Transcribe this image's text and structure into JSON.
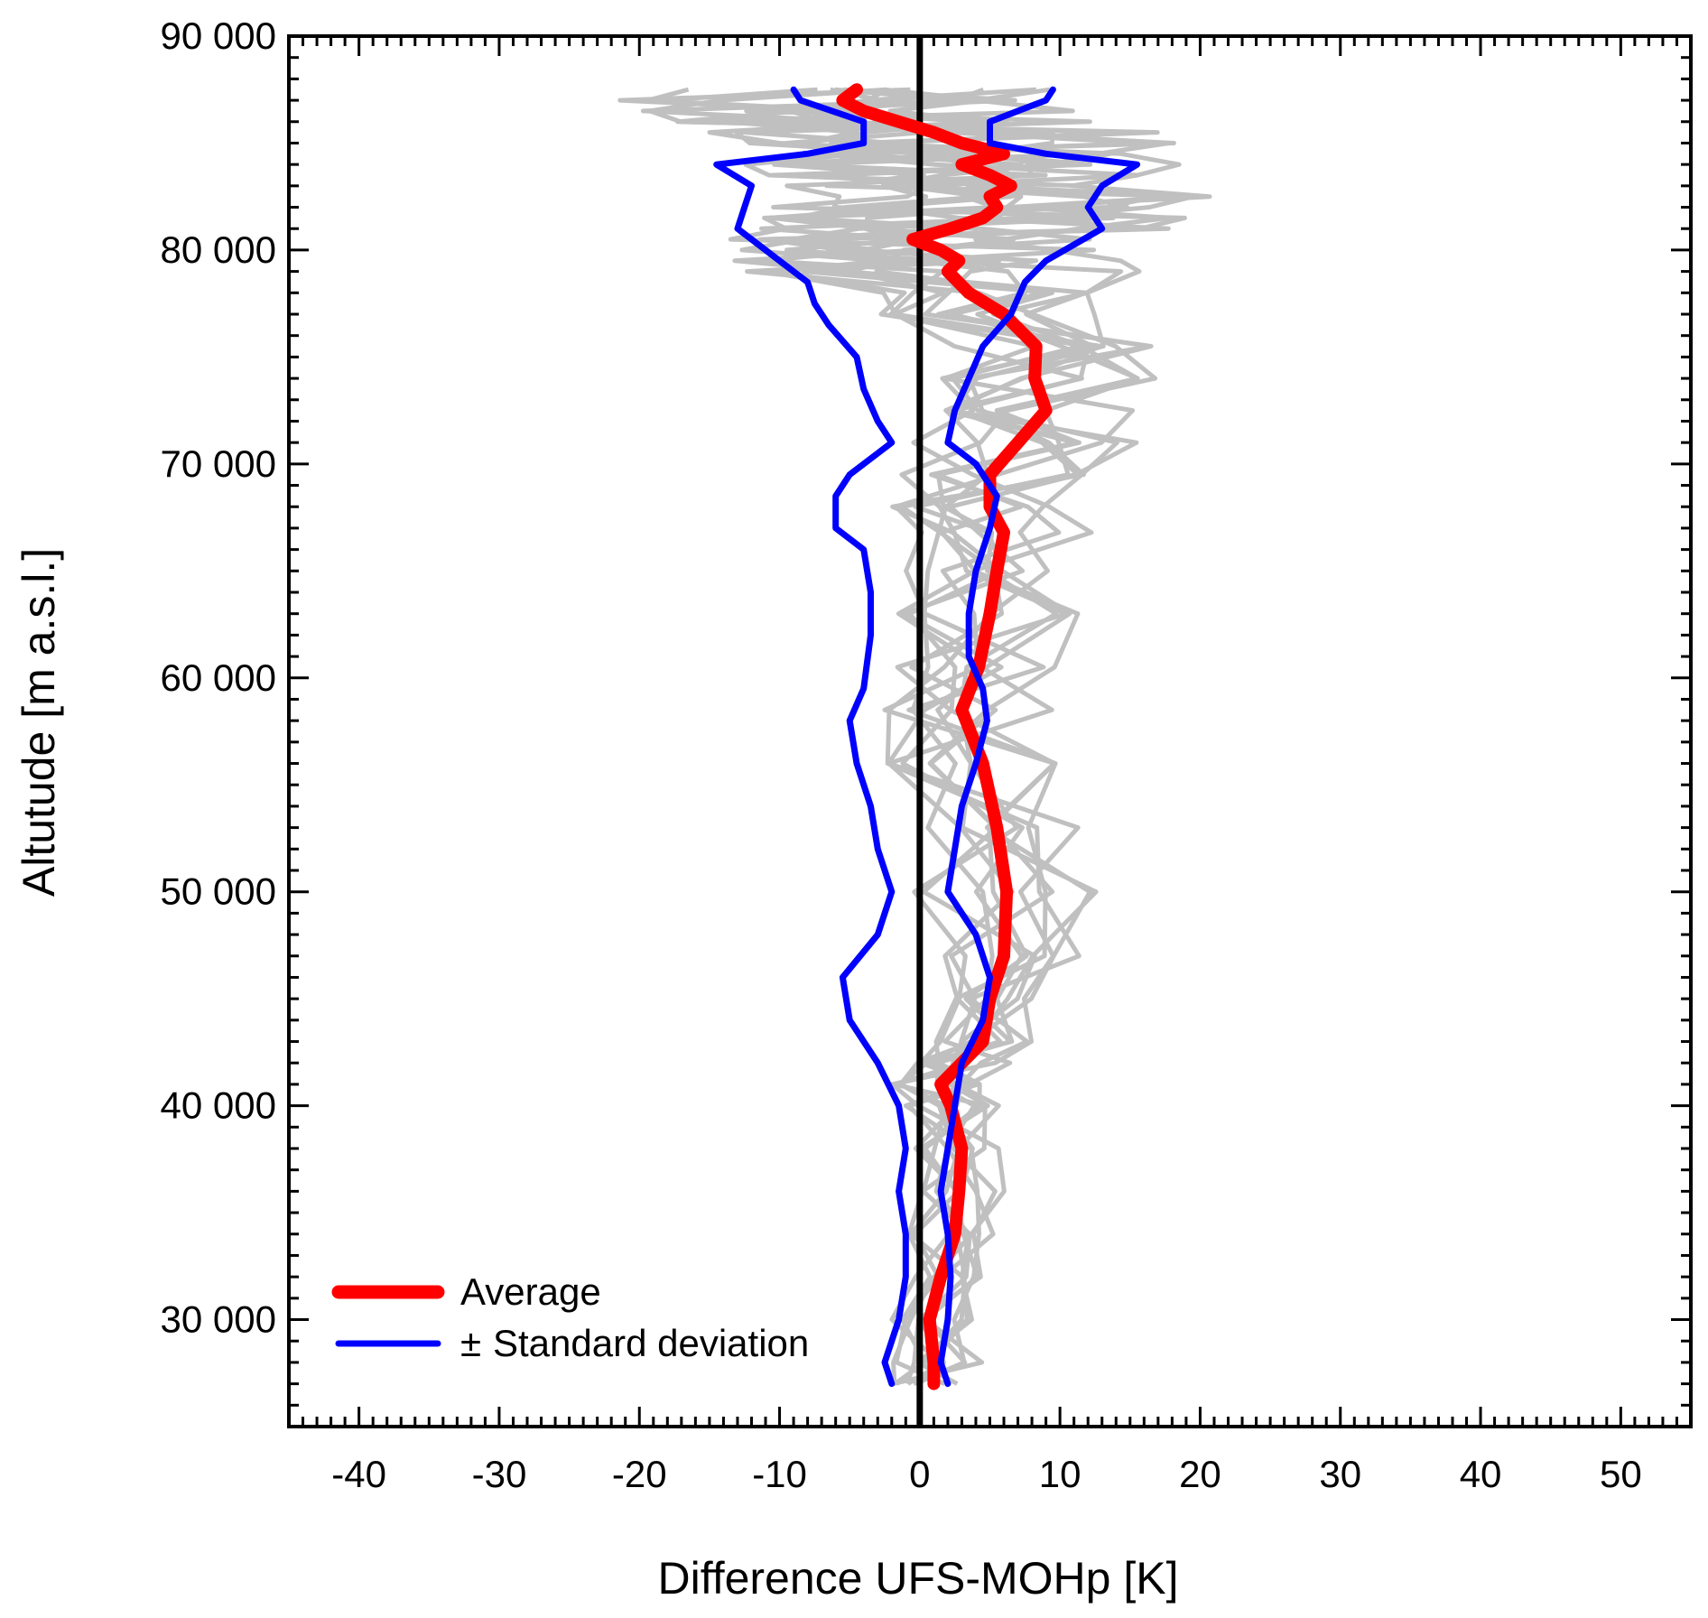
{
  "chart_data": {
    "type": "line",
    "xlabel": "Difference UFS-MOHp [K]",
    "ylabel": "Altutude [m a.s.l.]",
    "xlim": [
      -45,
      55
    ],
    "ylim": [
      25000,
      90000
    ],
    "x_ticks": [
      -40,
      -30,
      -20,
      -10,
      0,
      10,
      20,
      30,
      40,
      50
    ],
    "x_tick_labels": [
      "-40",
      "-30",
      "-20",
      "-10",
      "0",
      "10",
      "20",
      "30",
      "40",
      "50"
    ],
    "y_ticks": [
      30000,
      40000,
      50000,
      60000,
      70000,
      80000,
      90000
    ],
    "y_tick_labels": [
      "30 000",
      "40 000",
      "50 000",
      "60 000",
      "70 000",
      "80 000",
      "90 000"
    ],
    "zero_line_x": 0,
    "legend_placement": "bottom-left",
    "grid": false,
    "colors": {
      "average": "#ff0000",
      "std": "#0000ff",
      "individual": "#c0c0c0",
      "zero_line": "#000000"
    },
    "series": [
      {
        "name": "Average",
        "color": "#ff0000",
        "points": [
          [
            1,
            27000
          ],
          [
            1,
            28000
          ],
          [
            0.7,
            30000
          ],
          [
            1.5,
            32000
          ],
          [
            2.5,
            34000
          ],
          [
            2.8,
            36000
          ],
          [
            3,
            38000
          ],
          [
            2.2,
            40000
          ],
          [
            1.5,
            41000
          ],
          [
            3,
            42000
          ],
          [
            4.5,
            43000
          ],
          [
            5,
            45000
          ],
          [
            6,
            47000
          ],
          [
            6.2,
            50000
          ],
          [
            5.5,
            53000
          ],
          [
            4.5,
            56000
          ],
          [
            3,
            58500
          ],
          [
            4.2,
            60500
          ],
          [
            5,
            63000
          ],
          [
            5.5,
            65000
          ],
          [
            6,
            66800
          ],
          [
            5,
            68000
          ],
          [
            5,
            69500
          ],
          [
            7,
            71000
          ],
          [
            9,
            72500
          ],
          [
            8.2,
            74000
          ],
          [
            8.3,
            75500
          ],
          [
            6,
            77000
          ],
          [
            3.5,
            78000
          ],
          [
            2,
            79000
          ],
          [
            2.8,
            79500
          ],
          [
            1.5,
            80000
          ],
          [
            -0.5,
            80500
          ],
          [
            2.2,
            81000
          ],
          [
            4.5,
            81500
          ],
          [
            5.5,
            82000
          ],
          [
            5,
            82500
          ],
          [
            6.5,
            83000
          ],
          [
            5,
            83500
          ],
          [
            3,
            84000
          ],
          [
            6,
            84500
          ],
          [
            3,
            85000
          ],
          [
            1,
            85500
          ],
          [
            -1.5,
            86000
          ],
          [
            -4,
            86500
          ],
          [
            -5.5,
            87000
          ],
          [
            -4.5,
            87500
          ]
        ]
      },
      {
        "name": "± Standard deviation",
        "color": "#0000ff",
        "points": [
          [
            -2,
            27000
          ],
          [
            -2.5,
            28000
          ],
          [
            -1.5,
            30000
          ],
          [
            -1,
            32000
          ],
          [
            -1,
            34000
          ],
          [
            -1.5,
            36000
          ],
          [
            -1,
            38000
          ],
          [
            -1.5,
            40000
          ],
          [
            -3,
            42000
          ],
          [
            -5,
            44000
          ],
          [
            -5.5,
            46000
          ],
          [
            -3,
            48000
          ],
          [
            -2,
            50000
          ],
          [
            -3,
            52000
          ],
          [
            -3.5,
            54000
          ],
          [
            -4.5,
            56000
          ],
          [
            -5,
            58000
          ],
          [
            -4,
            59500
          ],
          [
            -3.5,
            62000
          ],
          [
            -3.5,
            64000
          ],
          [
            -4,
            66000
          ],
          [
            -6,
            67000
          ],
          [
            -6,
            68500
          ],
          [
            -5,
            69500
          ],
          [
            -3,
            70500
          ],
          [
            -2,
            71000
          ],
          [
            -3,
            72000
          ],
          [
            -4,
            73500
          ],
          [
            -4.5,
            75000
          ],
          [
            -6.5,
            76500
          ],
          [
            -7.5,
            77500
          ],
          [
            -8,
            78500
          ],
          [
            -10,
            79500
          ],
          [
            -13,
            81000
          ],
          [
            -12.5,
            82000
          ],
          [
            -12,
            83000
          ],
          [
            -14.5,
            84000
          ],
          [
            -8,
            84500
          ],
          [
            -4,
            85000
          ],
          [
            -4,
            86000
          ],
          [
            -8.5,
            87000
          ],
          [
            -9,
            87500
          ]
        ]
      },
      {
        "name": "",
        "color": "#0000ff",
        "points": [
          [
            2,
            27000
          ],
          [
            1.5,
            28000
          ],
          [
            2,
            30000
          ],
          [
            2.2,
            32000
          ],
          [
            2,
            34000
          ],
          [
            1.5,
            36000
          ],
          [
            2,
            38000
          ],
          [
            2.5,
            40000
          ],
          [
            3,
            42000
          ],
          [
            4.5,
            44000
          ],
          [
            5,
            46000
          ],
          [
            4,
            48000
          ],
          [
            2,
            50000
          ],
          [
            2.5,
            52000
          ],
          [
            3,
            54000
          ],
          [
            4,
            56000
          ],
          [
            4.8,
            58000
          ],
          [
            4.5,
            59500
          ],
          [
            3.5,
            61000
          ],
          [
            3.5,
            63000
          ],
          [
            4,
            65000
          ],
          [
            5,
            67000
          ],
          [
            5.5,
            68500
          ],
          [
            4,
            70000
          ],
          [
            2,
            71000
          ],
          [
            2.5,
            72500
          ],
          [
            3.5,
            74000
          ],
          [
            4.5,
            75500
          ],
          [
            6.5,
            77000
          ],
          [
            7.5,
            78500
          ],
          [
            9,
            79500
          ],
          [
            13,
            81000
          ],
          [
            12,
            82000
          ],
          [
            13,
            83000
          ],
          [
            15.5,
            84000
          ],
          [
            9,
            84500
          ],
          [
            5,
            85000
          ],
          [
            5,
            86000
          ],
          [
            9,
            87000
          ],
          [
            9.5,
            87500
          ]
        ]
      }
    ]
  },
  "legend": {
    "average_label": "Average",
    "std_pm": "±",
    "std_label": "Standard deviation"
  }
}
